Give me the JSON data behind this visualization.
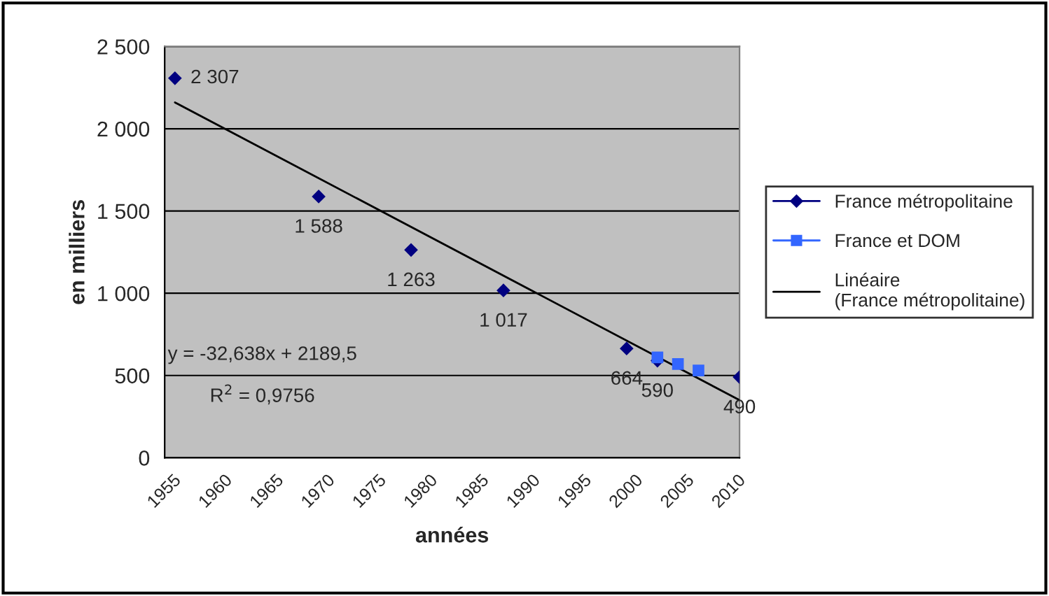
{
  "chart_data": {
    "type": "scatter",
    "xlabel": "années",
    "ylabel": "en milliers",
    "xlim": [
      1955,
      2011
    ],
    "xticks": [
      1955,
      1960,
      1965,
      1970,
      1975,
      1980,
      1985,
      1990,
      1995,
      2000,
      2005,
      2010
    ],
    "ylim": [
      0,
      2500
    ],
    "yticks": [
      0,
      500,
      {
        "value": 1000,
        "label": "1 000"
      },
      {
        "value": 1500,
        "label": "1 500"
      },
      {
        "value": 2000,
        "label": "2 000"
      },
      {
        "value": 2500,
        "label": "2 500"
      }
    ],
    "grid": "y",
    "legend": "right",
    "series": [
      {
        "name": "France métropolitaine",
        "color": "#000080",
        "marker": "diamond",
        "x": [
          1956,
          1970,
          1979,
          1988,
          2000,
          2003,
          2011
        ],
        "values": [
          2307,
          1588,
          1263,
          1017,
          664,
          590,
          490
        ],
        "value_labels": [
          "2 307",
          "1 588",
          "1 263",
          "1 017",
          "664",
          "590",
          "490"
        ]
      },
      {
        "name": "France et DOM",
        "color": "#3366ff",
        "marker": "square",
        "x": [
          2003,
          2005,
          2007
        ],
        "values": [
          610,
          570,
          530
        ]
      },
      {
        "name": "Linéaire (France métropolitaine)",
        "type": "line",
        "color": "#000000",
        "marker": "none",
        "x": [
          1956,
          2011
        ],
        "values": [
          2160,
          350
        ]
      }
    ],
    "annotations": [
      "y = -32,638x + 2189,5",
      "R$^{2}$ = 0,9756"
    ]
  }
}
